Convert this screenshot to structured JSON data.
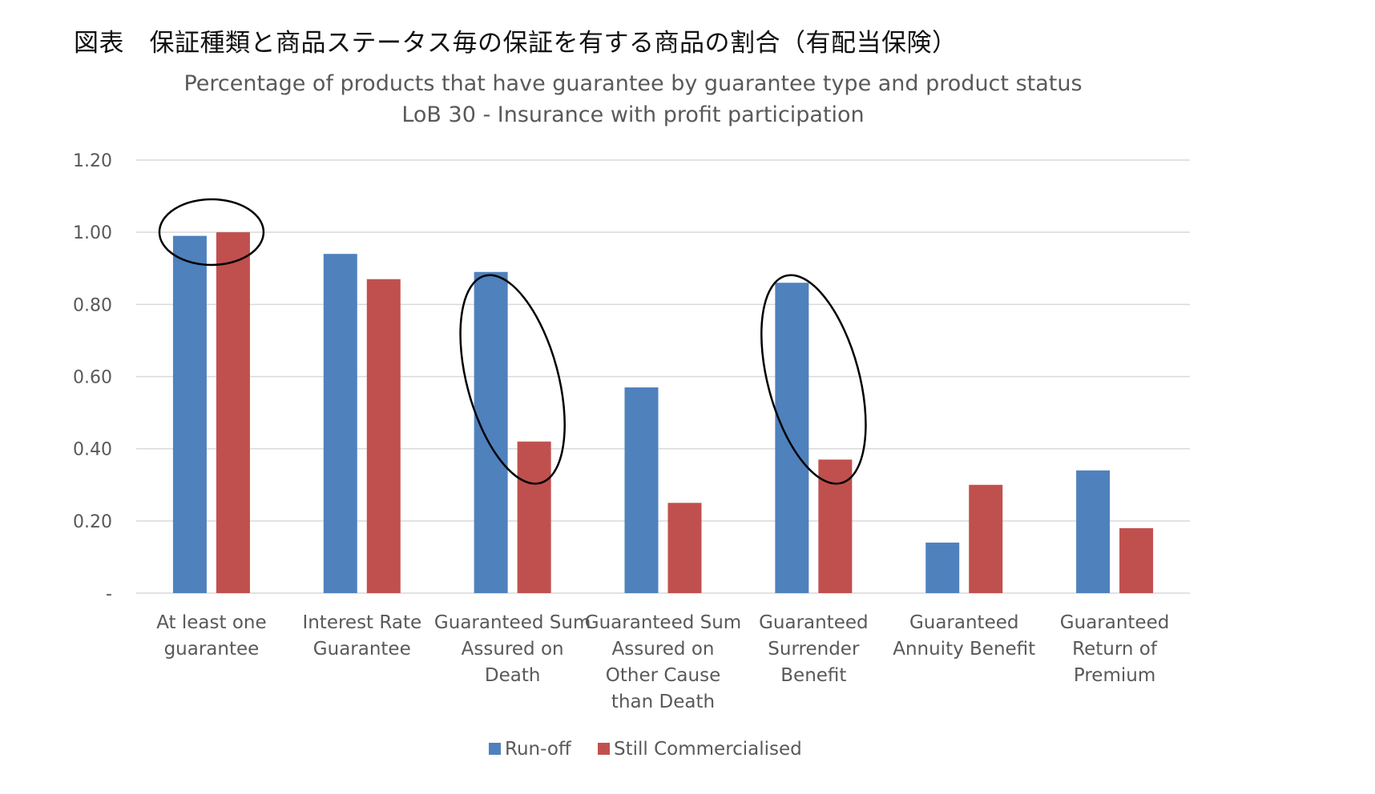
{
  "figure_title": "図表　保証種類と商品ステータス毎の保証を有する商品の割合（有配当保険）",
  "chart_data": {
    "type": "bar",
    "title": "Percentage of products that have guarantee by guarantee type and product status",
    "subtitle": "LoB 30 - Insurance with profit participation",
    "categories": [
      [
        "At least one",
        "guarantee"
      ],
      [
        "Interest Rate",
        "Guarantee"
      ],
      [
        "Guaranteed Sum",
        "Assured on",
        "Death"
      ],
      [
        "Guaranteed Sum",
        "Assured on",
        "Other Cause",
        "than Death"
      ],
      [
        "Guaranteed",
        "Surrender",
        "Benefit"
      ],
      [
        "Guaranteed",
        "Annuity Benefit"
      ],
      [
        "Guaranteed",
        "Return of",
        "Premium"
      ]
    ],
    "series": [
      {
        "name": "Run-off",
        "color": "#4F81BD",
        "values": [
          0.99,
          0.94,
          0.89,
          0.57,
          0.86,
          0.14,
          0.34
        ]
      },
      {
        "name": "Still Commercialised",
        "color": "#C0504D",
        "values": [
          1.0,
          0.87,
          0.42,
          0.25,
          0.37,
          0.3,
          0.18
        ]
      }
    ],
    "ylim": [
      0,
      1.2
    ],
    "yticks": [
      0,
      0.2,
      0.4,
      0.6,
      0.8,
      1.0,
      1.2
    ],
    "ytick_labels": [
      "-",
      "0.20",
      "0.40",
      "0.60",
      "0.80",
      "1.00",
      "1.20"
    ],
    "xlabel": "",
    "ylabel": "",
    "grid": true,
    "legend_position": "bottom",
    "highlighted_categories": [
      0,
      2,
      4
    ]
  }
}
